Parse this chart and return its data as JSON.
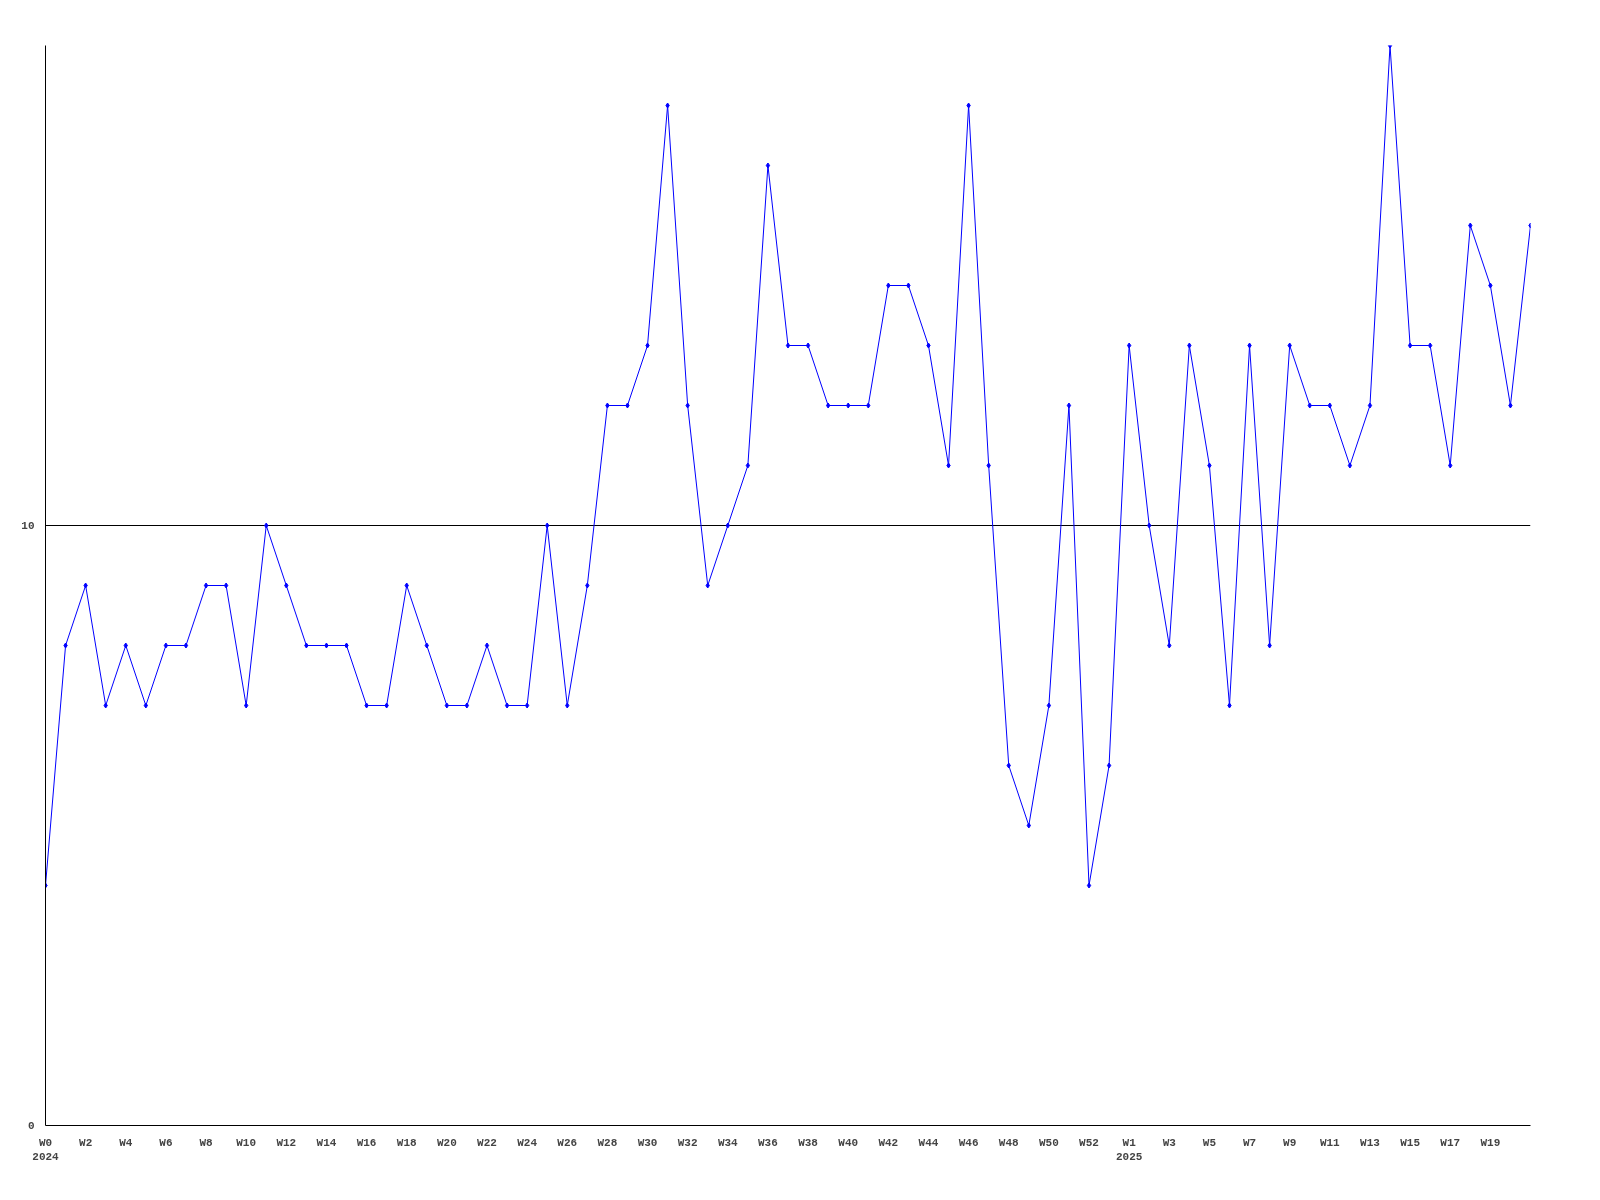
{
  "chart_data": {
    "type": "line",
    "categories": [
      "W0\n2024",
      null,
      "W2",
      null,
      "W4",
      null,
      "W6",
      null,
      "W8",
      null,
      "W10",
      null,
      "W12",
      null,
      "W14",
      null,
      "W16",
      null,
      "W18",
      null,
      "W20",
      null,
      "W22",
      null,
      "W24",
      null,
      "W26",
      null,
      "W28",
      null,
      "W30",
      null,
      "W32",
      null,
      "W34",
      null,
      "W36",
      null,
      "W38",
      null,
      "W40",
      null,
      "W42",
      null,
      "W44",
      null,
      "W46",
      null,
      "W48",
      null,
      "W50",
      null,
      "W52",
      null,
      "W1\n2025",
      null,
      "W3",
      null,
      "W5",
      null,
      "W7",
      null,
      "W9",
      null,
      "W11",
      null,
      "W13",
      null,
      "W15",
      null,
      "W17",
      null,
      "W19",
      null,
      null
    ],
    "series": [
      {
        "color": "#0000ff",
        "values": [
          4,
          8,
          9,
          7,
          8,
          7,
          8,
          8,
          9,
          9,
          7,
          10,
          9,
          8,
          8,
          8,
          7,
          7,
          9,
          8,
          7,
          7,
          8,
          7,
          7,
          10,
          7,
          9,
          12,
          12,
          13,
          17,
          12,
          9,
          10,
          11,
          16,
          13,
          13,
          12,
          12,
          12,
          14,
          14,
          13,
          11,
          17,
          11,
          6,
          5,
          7,
          12,
          4,
          6,
          13,
          10,
          8,
          13,
          11,
          7,
          13,
          8,
          13,
          12,
          12,
          11,
          12,
          18,
          13,
          13,
          11,
          15,
          14,
          12,
          15
        ]
      }
    ],
    "ylim": [
      0,
      18
    ],
    "yticks": [
      0,
      10
    ],
    "grid": "y",
    "marker": "diamond",
    "line_style": "solid"
  }
}
